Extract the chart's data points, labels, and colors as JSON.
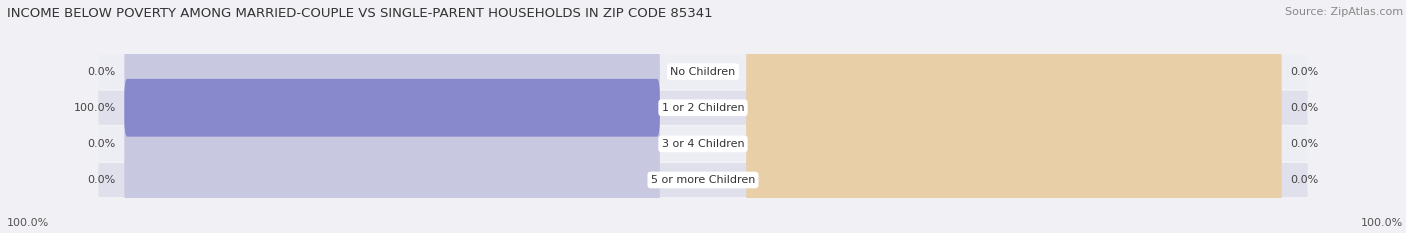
{
  "title": "INCOME BELOW POVERTY AMONG MARRIED-COUPLE VS SINGLE-PARENT HOUSEHOLDS IN ZIP CODE 85341",
  "source": "Source: ZipAtlas.com",
  "categories": [
    "No Children",
    "1 or 2 Children",
    "3 or 4 Children",
    "5 or more Children"
  ],
  "married_values": [
    0.0,
    100.0,
    0.0,
    0.0
  ],
  "single_values": [
    0.0,
    0.0,
    0.0,
    0.0
  ],
  "married_color": "#8888cc",
  "single_color": "#f0b87a",
  "bar_bg_color_married": "#c8c8e0",
  "bar_bg_color_single": "#e8cfa8",
  "row_bg_even": "#ededf4",
  "row_bg_odd": "#e0e0ec",
  "title_fontsize": 9.5,
  "source_fontsize": 8,
  "label_fontsize": 8,
  "cat_fontsize": 8,
  "legend_fontsize": 8,
  "left_axis_label": "100.0%",
  "right_axis_label": "100.0%",
  "background_color": "#f0f0f5"
}
